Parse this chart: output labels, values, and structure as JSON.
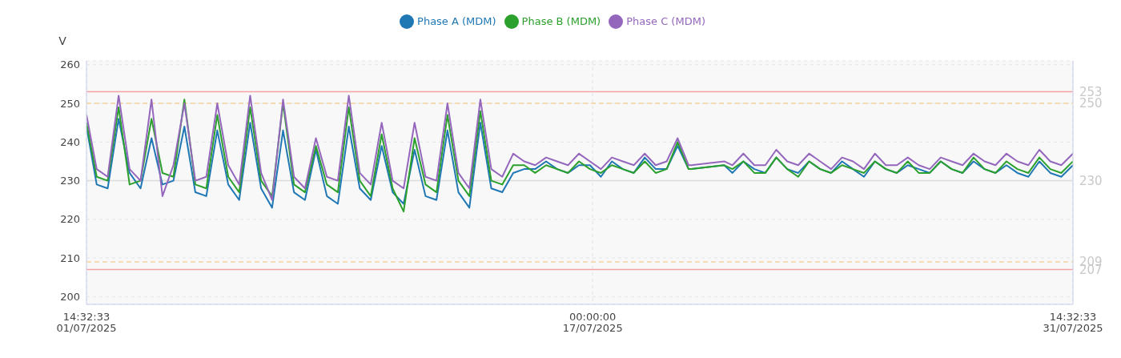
{
  "chart_data": {
    "type": "line",
    "ylabel": "V",
    "legend": "top",
    "grid": true,
    "marker": "none",
    "line_style": "solid",
    "xlim": [
      "2025-07-01T14:32",
      "2025-07-31T14:32"
    ],
    "xticks": [
      {
        "value": "2025-07-01T14:32",
        "label": "14:32:33\n01/07/2025"
      },
      {
        "value": "2025-07-17T00:00",
        "label": "00:00:00\n17/07/2025"
      },
      {
        "value": "2025-07-31T14:32",
        "label": "14:32:33\n31/07/2025"
      }
    ],
    "ylim": [
      198,
      261
    ],
    "yticks": [
      200,
      210,
      220,
      230,
      240,
      250,
      260
    ],
    "ref_lines": [
      {
        "axis": "y",
        "value": 253,
        "label": "253",
        "color": "#f4a3a3",
        "line_style": "solid"
      },
      {
        "axis": "y",
        "value": 250,
        "label": "250",
        "color": "#f3d29a",
        "line_style": "dashed"
      },
      {
        "axis": "y",
        "value": 230,
        "label": "230",
        "color": "#dcdcdc",
        "line_style": "solid"
      },
      {
        "axis": "y",
        "value": 209,
        "label": "209",
        "color": "#f3d29a",
        "line_style": "dashed"
      },
      {
        "axis": "y",
        "value": 207,
        "label": "207",
        "color": "#f4a3a3",
        "line_style": "solid"
      }
    ],
    "x": [
      "2025-07-01T14:32",
      "2025-07-01T22:00",
      "2025-07-02T06:00",
      "2025-07-02T14:00",
      "2025-07-02T22:00",
      "2025-07-03T06:00",
      "2025-07-03T14:00",
      "2025-07-03T22:00",
      "2025-07-04T06:00",
      "2025-07-04T14:00",
      "2025-07-04T22:00",
      "2025-07-05T06:00",
      "2025-07-05T14:00",
      "2025-07-05T22:00",
      "2025-07-06T06:00",
      "2025-07-06T14:00",
      "2025-07-06T22:00",
      "2025-07-07T06:00",
      "2025-07-07T14:00",
      "2025-07-07T22:00",
      "2025-07-08T06:00",
      "2025-07-08T14:00",
      "2025-07-08T22:00",
      "2025-07-09T06:00",
      "2025-07-09T14:00",
      "2025-07-09T22:00",
      "2025-07-10T06:00",
      "2025-07-10T14:00",
      "2025-07-10T22:00",
      "2025-07-11T06:00",
      "2025-07-11T14:00",
      "2025-07-11T22:00",
      "2025-07-12T06:00",
      "2025-07-12T14:00",
      "2025-07-12T22:00",
      "2025-07-13T06:00",
      "2025-07-13T14:00",
      "2025-07-13T22:00",
      "2025-07-14T06:00",
      "2025-07-14T14:00",
      "2025-07-14T22:00",
      "2025-07-15T06:00",
      "2025-07-15T14:00",
      "2025-07-15T22:00",
      "2025-07-16T06:00",
      "2025-07-16T14:00",
      "2025-07-16T22:00",
      "2025-07-17T06:00",
      "2025-07-17T14:00",
      "2025-07-17T22:00",
      "2025-07-18T06:00",
      "2025-07-18T14:00",
      "2025-07-18T22:00",
      "2025-07-19T06:00",
      "2025-07-19T14:00",
      "2025-07-19T22:00",
      "2025-07-20T00:00",
      "2025-07-21T00:00",
      "2025-07-21T06:00",
      "2025-07-21T14:00",
      "2025-07-21T22:00",
      "2025-07-22T06:00",
      "2025-07-22T14:00",
      "2025-07-22T22:00",
      "2025-07-23T06:00",
      "2025-07-23T14:00",
      "2025-07-23T22:00",
      "2025-07-24T06:00",
      "2025-07-24T14:00",
      "2025-07-24T22:00",
      "2025-07-25T06:00",
      "2025-07-25T14:00",
      "2025-07-25T22:00",
      "2025-07-26T06:00",
      "2025-07-26T14:00",
      "2025-07-26T22:00",
      "2025-07-27T06:00",
      "2025-07-27T14:00",
      "2025-07-27T22:00",
      "2025-07-28T06:00",
      "2025-07-28T14:00",
      "2025-07-28T22:00",
      "2025-07-29T06:00",
      "2025-07-29T14:00",
      "2025-07-29T22:00",
      "2025-07-30T06:00",
      "2025-07-30T14:00",
      "2025-07-30T22:00",
      "2025-07-31T06:00",
      "2025-07-31T14:32"
    ],
    "series": [
      {
        "name": "Phase A (MDM)",
        "color": "#1f77b4",
        "values": [
          244,
          229,
          228,
          246,
          232,
          228,
          241,
          229,
          230,
          244,
          227,
          226,
          243,
          229,
          225,
          245,
          228,
          223,
          243,
          227,
          225,
          238,
          226,
          224,
          244,
          228,
          225,
          239,
          227,
          224,
          238,
          226,
          225,
          243,
          227,
          223,
          245,
          228,
          227,
          232,
          233,
          233,
          235,
          233,
          232,
          234,
          234,
          231,
          235,
          233,
          232,
          236,
          233,
          233,
          239,
          233,
          233,
          234,
          232,
          235,
          233,
          232,
          236,
          233,
          232,
          235,
          233,
          232,
          235,
          233,
          231,
          235,
          233,
          232,
          234,
          233,
          232,
          235,
          233,
          232,
          235,
          233,
          232,
          234,
          232,
          231,
          235,
          232,
          231,
          234
        ]
      },
      {
        "name": "Phase B (MDM)",
        "color": "#2ca02c",
        "values": [
          245,
          231,
          230,
          249,
          229,
          230,
          246,
          232,
          231,
          251,
          229,
          228,
          247,
          231,
          227,
          249,
          230,
          226,
          250,
          229,
          227,
          239,
          229,
          227,
          249,
          230,
          226,
          242,
          228,
          222,
          241,
          229,
          227,
          247,
          230,
          226,
          248,
          230,
          229,
          234,
          234,
          232,
          234,
          233,
          232,
          235,
          233,
          232,
          234,
          233,
          232,
          235,
          232,
          233,
          240,
          233,
          233,
          234,
          233,
          235,
          232,
          232,
          236,
          233,
          231,
          235,
          233,
          232,
          234,
          233,
          232,
          235,
          233,
          232,
          235,
          232,
          232,
          235,
          233,
          232,
          236,
          233,
          232,
          235,
          233,
          232,
          236,
          233,
          232,
          235
        ]
      },
      {
        "name": "Phase C (MDM)",
        "color": "#9467bd",
        "values": [
          247,
          233,
          231,
          252,
          233,
          230,
          251,
          226,
          234,
          250,
          230,
          231,
          250,
          234,
          229,
          252,
          232,
          225,
          251,
          231,
          228,
          241,
          231,
          230,
          252,
          232,
          229,
          245,
          230,
          228,
          245,
          231,
          230,
          250,
          232,
          228,
          251,
          233,
          231,
          237,
          235,
          234,
          236,
          235,
          234,
          237,
          235,
          233,
          236,
          235,
          234,
          237,
          234,
          235,
          241,
          234,
          234,
          235,
          234,
          237,
          234,
          234,
          238,
          235,
          234,
          237,
          235,
          233,
          236,
          235,
          233,
          237,
          234,
          234,
          236,
          234,
          233,
          236,
          235,
          234,
          237,
          235,
          234,
          237,
          235,
          234,
          238,
          235,
          234,
          237
        ]
      }
    ]
  }
}
